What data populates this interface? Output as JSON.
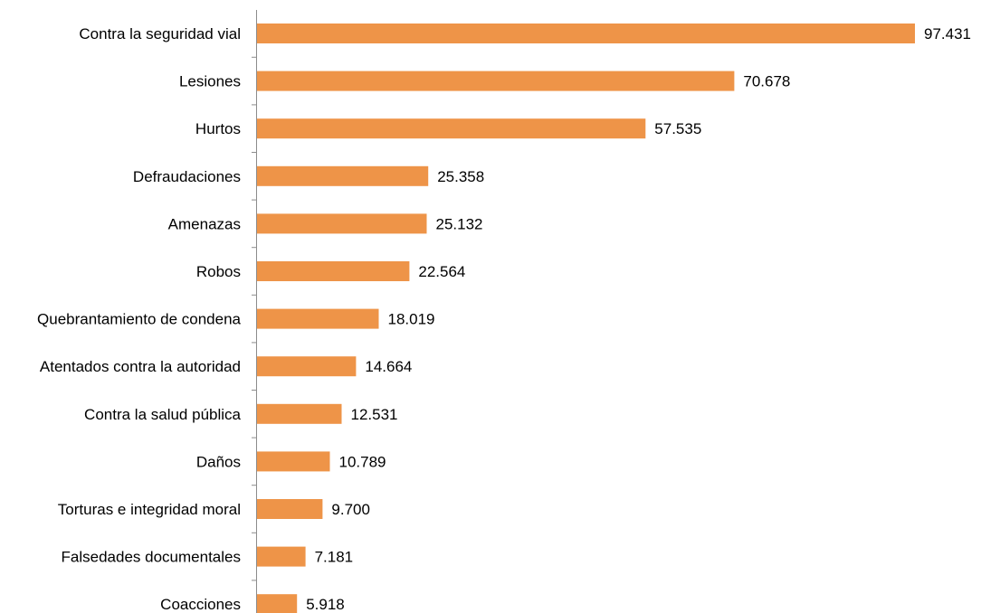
{
  "chart_data": {
    "type": "bar",
    "orientation": "horizontal",
    "categories": [
      "Contra la seguridad vial",
      "Lesiones",
      "Hurtos",
      "Defraudaciones",
      "Amenazas",
      "Robos",
      "Quebrantamiento de condena",
      "Atentados contra la autoridad",
      "Contra la salud pública",
      "Daños",
      "Torturas e integridad moral",
      "Falsedades documentales",
      "Coacciones"
    ],
    "values": [
      97431,
      70678,
      57535,
      25358,
      25132,
      22564,
      18019,
      14664,
      12531,
      10789,
      9700,
      7181,
      5918
    ],
    "value_labels": [
      "97.431",
      "70.678",
      "57.535",
      "25.358",
      "25.132",
      "22.564",
      "18.019",
      "14.664",
      "12.531",
      "10.789",
      "9.700",
      "7.181",
      "5.918"
    ],
    "bar_color": "#ee9448",
    "axis_color": "#8c8c8c",
    "title": "",
    "xlabel": "",
    "ylabel": "",
    "grid": false,
    "legend": "none"
  }
}
